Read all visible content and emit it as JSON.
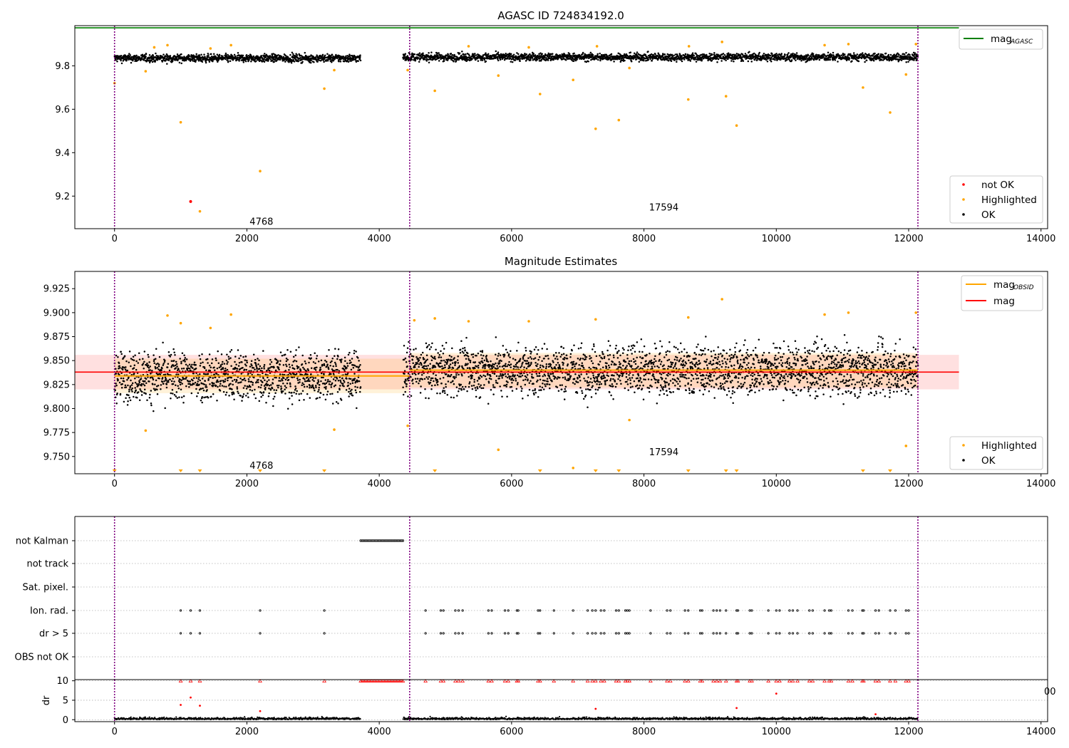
{
  "chart_data": [
    {
      "type": "scatter",
      "title": "AGASC ID 724834192.0",
      "xlim": [
        -600,
        14100
      ],
      "ylim": [
        9.05,
        9.985
      ],
      "xticks": [
        0,
        2000,
        4000,
        6000,
        8000,
        10000,
        12000,
        14000
      ],
      "yticks": [
        9.2,
        9.4,
        9.6,
        9.8
      ],
      "ytick_labels": [
        "9.2",
        "9.4",
        "9.6",
        "9.8"
      ],
      "mag_agasc": 9.975,
      "mag_agasc_x_range": [
        -600,
        12760
      ],
      "obs_boundaries": [
        0,
        4460,
        12140
      ],
      "obs_labels": [
        {
          "text": "4768",
          "x": 2220,
          "y": 9.085
        },
        {
          "text": "17594",
          "x": 8300,
          "y": 9.15
        }
      ],
      "ok_band": {
        "segments": [
          [
            0,
            3720,
            9.835
          ],
          [
            4360,
            12140,
            9.84
          ]
        ],
        "spread": 0.014
      },
      "highlighted": [
        [
          0,
          9.72
        ],
        [
          470,
          9.775
        ],
        [
          1000,
          9.54
        ],
        [
          1290,
          9.13
        ],
        [
          2200,
          9.315
        ],
        [
          3170,
          9.695
        ],
        [
          3320,
          9.78
        ],
        [
          4430,
          9.78
        ],
        [
          4840,
          9.685
        ],
        [
          5800,
          9.755
        ],
        [
          6430,
          9.67
        ],
        [
          6930,
          9.735
        ],
        [
          7270,
          9.51
        ],
        [
          7620,
          9.55
        ],
        [
          7780,
          9.79
        ],
        [
          8670,
          9.645
        ],
        [
          9240,
          9.66
        ],
        [
          9400,
          9.525
        ],
        [
          11310,
          9.7
        ],
        [
          11720,
          9.585
        ],
        [
          11960,
          9.76
        ],
        [
          600,
          9.885
        ],
        [
          800,
          9.895
        ],
        [
          1450,
          9.88
        ],
        [
          1760,
          9.895
        ],
        [
          5350,
          9.89
        ],
        [
          6260,
          9.885
        ],
        [
          7290,
          9.89
        ],
        [
          8680,
          9.89
        ],
        [
          9180,
          9.91
        ],
        [
          10730,
          9.895
        ],
        [
          11090,
          9.9
        ],
        [
          12110,
          9.9
        ]
      ],
      "not_ok": [
        [
          1150,
          9.175
        ]
      ],
      "legend_lines": [
        {
          "label": "mag",
          "sub": "AGASC",
          "color": "#008000"
        }
      ],
      "legend_points": [
        {
          "label": "not OK",
          "color": "#ff0000"
        },
        {
          "label": "Highlighted",
          "color": "#ffa500"
        },
        {
          "label": "OK",
          "color": "#000000"
        }
      ]
    },
    {
      "type": "scatter",
      "title": "Magnitude Estimates",
      "xlim": [
        -600,
        14100
      ],
      "ylim": [
        9.732,
        9.943
      ],
      "xticks": [
        0,
        2000,
        4000,
        6000,
        8000,
        10000,
        12000,
        14000
      ],
      "yticks": [
        9.75,
        9.775,
        9.8,
        9.825,
        9.85,
        9.875,
        9.9,
        9.925
      ],
      "ytick_labels": [
        "9.750",
        "9.775",
        "9.800",
        "9.825",
        "9.850",
        "9.875",
        "9.900",
        "9.925"
      ],
      "obs_boundaries": [
        0,
        4460,
        12140
      ],
      "obs_labels": [
        {
          "text": "4768",
          "x": 2220,
          "y": 9.741
        },
        {
          "text": "17594",
          "x": 8300,
          "y": 9.755
        }
      ],
      "mag": 9.838,
      "mag_x_range": [
        -600,
        12760
      ],
      "mag_band": [
        9.82,
        9.856
      ],
      "mag_obsid": [
        {
          "x": [
            0,
            4460
          ],
          "y": 9.834,
          "band": [
            9.816,
            9.852
          ]
        },
        {
          "x": [
            4460,
            12140
          ],
          "y": 9.84,
          "band": [
            9.822,
            9.858
          ]
        }
      ],
      "ok_band": {
        "segments": [
          [
            0,
            3720,
            9.834
          ],
          [
            4360,
            12140,
            9.84
          ]
        ],
        "spread": 0.018
      },
      "highlighted": [
        [
          470,
          9.777
        ],
        [
          800,
          9.897
        ],
        [
          1000,
          9.889
        ],
        [
          1450,
          9.884
        ],
        [
          1760,
          9.898
        ],
        [
          3320,
          9.778
        ],
        [
          4430,
          9.782
        ],
        [
          4530,
          9.892
        ],
        [
          4840,
          9.894
        ],
        [
          5350,
          9.891
        ],
        [
          5800,
          9.757
        ],
        [
          6260,
          9.891
        ],
        [
          6930,
          9.738
        ],
        [
          7270,
          9.893
        ],
        [
          7780,
          9.788
        ],
        [
          8670,
          9.895
        ],
        [
          9180,
          9.914
        ],
        [
          10730,
          9.898
        ],
        [
          11090,
          9.9
        ],
        [
          11960,
          9.761
        ],
        [
          12110,
          9.9
        ]
      ],
      "low_markers": [
        0,
        1000,
        1290,
        2200,
        3170,
        4840,
        6430,
        7270,
        7620,
        8670,
        9240,
        9400,
        11310,
        11720
      ],
      "legend_lines": [
        {
          "label": "mag",
          "sub": "OBSID",
          "color": "#ffa500"
        },
        {
          "label": "mag",
          "sub": "",
          "color": "#ff0000"
        }
      ],
      "legend_points": [
        {
          "label": "Highlighted",
          "color": "#ffa500"
        },
        {
          "label": "OK",
          "color": "#000000"
        }
      ]
    },
    {
      "type": "scatter",
      "flag_labels": [
        "not Kalman",
        "not track",
        "Sat. pixel.",
        "Ion. rad.",
        "dr > 5",
        "OBS not OK"
      ],
      "not_kalman_x_range": [
        3720,
        4360
      ],
      "ion_rad_x": [
        1000,
        1150,
        1290,
        2200,
        3170,
        4700,
        4930,
        4970,
        5150,
        5200,
        5260,
        5650,
        5700,
        5900,
        5950,
        6080,
        6100,
        6400,
        6430,
        6640,
        6930,
        7150,
        7220,
        7270,
        7350,
        7400,
        7580,
        7620,
        7720,
        7750,
        7780,
        8100,
        8350,
        8400,
        8620,
        8670,
        8850,
        8880,
        9050,
        9100,
        9150,
        9240,
        9400,
        9420,
        9600,
        9630,
        9880,
        10000,
        10050,
        10200,
        10250,
        10320,
        10500,
        10550,
        10730,
        10800,
        10830,
        11090,
        11150,
        11300,
        11320,
        11500,
        11550,
        11720,
        11800,
        11960,
        12000
      ],
      "dr5_x": [
        1000,
        1150,
        1290,
        2200,
        3170,
        4700,
        4930,
        4970,
        5150,
        5200,
        5260,
        5650,
        5700,
        5900,
        5950,
        6080,
        6100,
        6400,
        6430,
        6640,
        6930,
        7150,
        7220,
        7270,
        7350,
        7400,
        7580,
        7620,
        7720,
        7750,
        7780,
        8100,
        8350,
        8400,
        8620,
        8670,
        8850,
        8880,
        9050,
        9100,
        9150,
        9240,
        9400,
        9420,
        9600,
        9630,
        9880,
        10000,
        10050,
        10200,
        10250,
        10320,
        10500,
        10550,
        10730,
        10800,
        10830,
        11090,
        11150,
        11300,
        11320,
        11500,
        11550,
        11720,
        11800,
        11960,
        12000
      ],
      "xticks": [
        0,
        2000,
        4000,
        6000,
        8000,
        10000,
        12000,
        14000
      ],
      "dr": {
        "ylabel": "dr",
        "ylim": [
          -0.5,
          10.3
        ],
        "yticks": [
          0,
          5,
          10
        ],
        "clip": 10,
        "outliers": [
          [
            1000,
            3.8
          ],
          [
            1150,
            5.7
          ],
          [
            1290,
            3.6
          ],
          [
            2200,
            2.2
          ],
          [
            7270,
            2.8
          ],
          [
            9400,
            3.0
          ],
          [
            10000,
            6.7
          ],
          [
            11500,
            1.4
          ]
        ]
      },
      "stray_label": "00"
    }
  ]
}
